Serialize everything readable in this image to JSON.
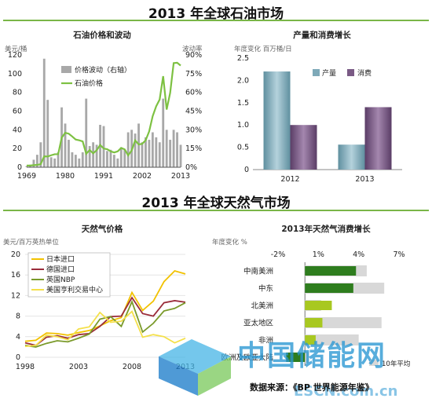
{
  "top_title": "2013 年全球石油市场",
  "bottom_title": "2013 年全球天然气市场",
  "source": "数据来源：《BP 世界能源年鉴》",
  "watermark": {
    "text": "中国储能网",
    "url": "ESCN.com.cn"
  },
  "colors": {
    "oil_bar": "#a8a8a8",
    "oil_line": "#7dc142",
    "production_bar": "#7ea9b8",
    "consumption_bar": "#7a5a85",
    "japan": "#f2c200",
    "germany": "#9a2c3a",
    "uk": "#7a9a2a",
    "us": "#f4e04a",
    "gas_dark_green": "#2e7d1e",
    "gas_yellow_green": "#a8c820",
    "gas_gray": "#d8d8d8"
  },
  "chart_data": [
    {
      "type": "bar",
      "title": "石油价格和波动",
      "ylabel": "美元/桶",
      "y2label": "波动率",
      "yticks": [
        "0",
        "20",
        "40",
        "60",
        "80",
        "100",
        "120"
      ],
      "y2ticks": [
        "0%",
        "15%",
        "30%",
        "45%",
        "60%",
        "75%",
        "90%"
      ],
      "xticks": [
        "1969",
        "1980",
        "1991",
        "2002",
        "2013"
      ],
      "ylim": [
        0,
        120
      ],
      "y2lim": [
        0,
        90
      ],
      "x": [
        1969,
        1970,
        1971,
        1972,
        1973,
        1974,
        1975,
        1976,
        1977,
        1978,
        1979,
        1980,
        1981,
        1982,
        1983,
        1984,
        1985,
        1986,
        1987,
        1988,
        1989,
        1990,
        1991,
        1992,
        1993,
        1994,
        1995,
        1996,
        1997,
        1998,
        1999,
        2000,
        2001,
        2002,
        2003,
        2004,
        2005,
        2006,
        2007,
        2008,
        2009,
        2010,
        2011,
        2012,
        2013
      ],
      "series": [
        {
          "name": "价格波动（右轴）",
          "axis": "right",
          "values": [
            1,
            2,
            6,
            10,
            20,
            87,
            54,
            8,
            7,
            12,
            48,
            35,
            22,
            12,
            10,
            7,
            12,
            55,
            17,
            20,
            18,
            34,
            33,
            13,
            14,
            10,
            7,
            16,
            14,
            28,
            30,
            27,
            35,
            20,
            24,
            22,
            28,
            24,
            20,
            55,
            30,
            22,
            30,
            28,
            18
          ]
        },
        {
          "name": "石油价格",
          "type": "line",
          "axis": "left",
          "values": [
            1.8,
            1.8,
            2.2,
            2.5,
            3.3,
            11.6,
            11.5,
            12.8,
            13.9,
            14.0,
            31.6,
            36.8,
            35.9,
            32.9,
            29.6,
            28.8,
            27.6,
            14.4,
            18.4,
            14.9,
            18.2,
            23.7,
            20.0,
            19.3,
            17.0,
            15.8,
            17.0,
            20.6,
            19.1,
            12.7,
            17.9,
            28.7,
            24.4,
            25.0,
            28.8,
            38.3,
            54.5,
            65.1,
            72.4,
            97.3,
            61.7,
            79.5,
            111.3,
            111.7,
            108.7
          ]
        }
      ]
    },
    {
      "type": "bar",
      "title": "产量和消费增长",
      "ylabel": "年度变化 百万桶/日",
      "categories": [
        "2012",
        "2013"
      ],
      "ylim": [
        0,
        2.5
      ],
      "yticks": [
        "0",
        "0.5",
        "1.0",
        "1.5",
        "2.0",
        "2.5"
      ],
      "series": [
        {
          "name": "产量",
          "values": [
            2.2,
            0.56
          ]
        },
        {
          "name": "消费",
          "values": [
            1.0,
            1.4
          ]
        }
      ]
    },
    {
      "type": "line",
      "title": "天然气价格",
      "ylabel": "美元/百万英热单位",
      "xticks": [
        "1998",
        "2003",
        "2008",
        "2013"
      ],
      "yticks": [
        "0",
        "4",
        "8",
        "12",
        "16",
        "20"
      ],
      "ylim": [
        0,
        20
      ],
      "x": [
        1998,
        1999,
        2000,
        2001,
        2002,
        2003,
        2004,
        2005,
        2006,
        2007,
        2008,
        2009,
        2010,
        2011,
        2012,
        2013
      ],
      "series": [
        {
          "name": "日本进口",
          "values": [
            3.1,
            3.3,
            4.7,
            4.6,
            4.3,
            4.8,
            5.2,
            6.1,
            7.1,
            7.7,
            12.6,
            9.1,
            10.9,
            14.7,
            16.8,
            16.2
          ]
        },
        {
          "name": "德国进口",
          "values": [
            2.8,
            2.3,
            3.9,
            4.2,
            3.7,
            4.4,
            4.6,
            6.0,
            7.9,
            8.0,
            11.6,
            8.5,
            8.0,
            10.6,
            11.0,
            10.7
          ]
        },
        {
          "name": "英国NBP",
          "values": [
            2.3,
            2.0,
            2.7,
            3.2,
            3.0,
            3.7,
            4.5,
            7.4,
            7.9,
            6.0,
            10.8,
            4.9,
            6.6,
            9.0,
            9.5,
            10.6
          ]
        },
        {
          "name": "美国亨利交易中心",
          "values": [
            2.1,
            2.3,
            4.3,
            4.0,
            3.4,
            5.5,
            5.9,
            8.7,
            6.8,
            7.0,
            8.9,
            3.9,
            4.4,
            4.0,
            2.8,
            3.7
          ]
        }
      ]
    },
    {
      "type": "bar",
      "orientation": "horizontal",
      "title": "2013年天然气消费增长",
      "ylabel": "年度变化 %",
      "xticks": [
        "-2%",
        "1%",
        "4%",
        "7%"
      ],
      "xlim": [
        -2,
        7
      ],
      "categories": [
        "中南美洲",
        "中东",
        "北美洲",
        "亚太地区",
        "非洲",
        "欧洲及欧亚大陆"
      ],
      "series": [
        {
          "name": "2013年",
          "values": [
            3.8,
            3.6,
            2.0,
            1.3,
            0.8,
            -1.4
          ]
        },
        {
          "name": "10年平均",
          "values": [
            4.6,
            5.9,
            1.2,
            5.7,
            4.0,
            0.3
          ]
        }
      ],
      "legend": [
        "10年平均"
      ]
    }
  ]
}
